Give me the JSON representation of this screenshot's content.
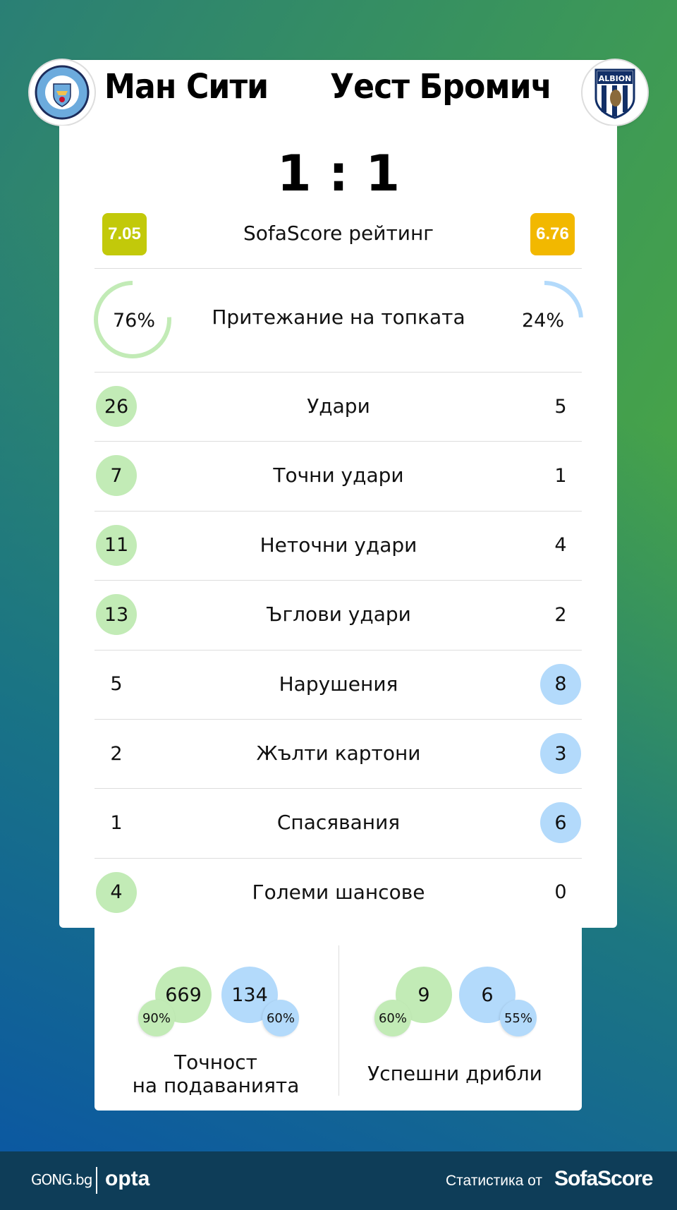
{
  "match": {
    "home": {
      "name": "Ман Сити",
      "logo_text": "MANCHESTER CITY",
      "rating": "7.05",
      "rating_color": "#c2c90a",
      "color": "#c2ebb6"
    },
    "away": {
      "name": "Уест Бромич",
      "logo_text": "WEST BROMWICH ALBION",
      "rating": "6.76",
      "rating_color": "#f2b800",
      "color": "#b3dafb"
    },
    "score": "1 : 1",
    "rating_label": "SofaScore рейтинг"
  },
  "possession": {
    "label": "Притежание на топката",
    "home": "76%",
    "away": "24%",
    "home_value": 76,
    "away_value": 24
  },
  "stats": [
    {
      "label": "Удари",
      "home": "26",
      "away": "5"
    },
    {
      "label": "Точни удари",
      "home": "7",
      "away": "1"
    },
    {
      "label": "Неточни удари",
      "home": "11",
      "away": "4"
    },
    {
      "label": "Ъглови удари",
      "home": "13",
      "away": "2"
    },
    {
      "label": "Нарушения",
      "home": "5",
      "away": "8"
    },
    {
      "label": "Жълти картони",
      "home": "2",
      "away": "3"
    },
    {
      "label": "Спасявания",
      "home": "1",
      "away": "6"
    },
    {
      "label": "Големи шансове",
      "home": "4",
      "away": "0"
    }
  ],
  "passing": {
    "label_line1": "Точност",
    "label_line2": "на подаванията",
    "home": "669",
    "home_pct": "90%",
    "away": "134",
    "away_pct": "60%"
  },
  "dribbles": {
    "label": "Успешни дрибли",
    "home": "9",
    "home_pct": "60%",
    "away": "6",
    "away_pct": "55%"
  },
  "footer": {
    "brand1": "GONG.bg",
    "brand2": "opta",
    "credit": "Статистика от",
    "credit_brand": "SofaScore"
  }
}
